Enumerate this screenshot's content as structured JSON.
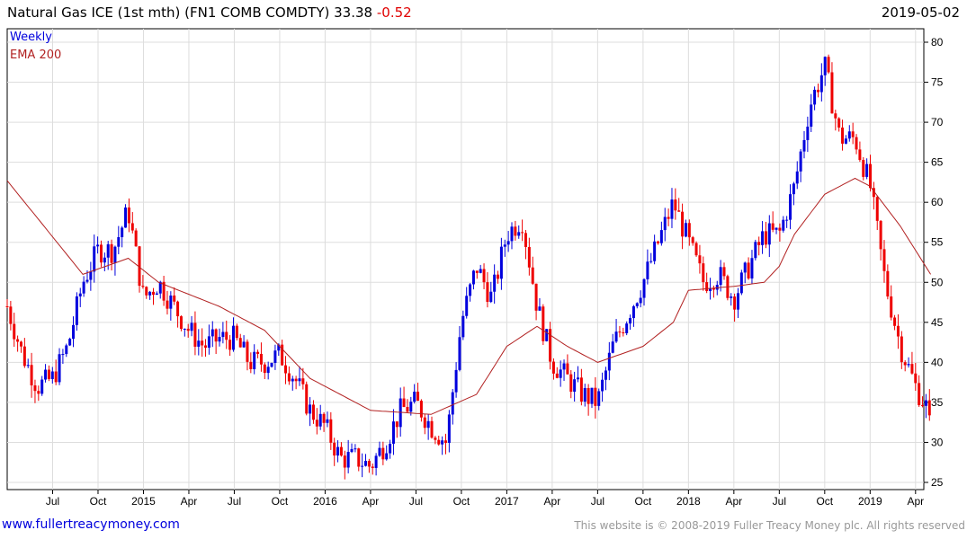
{
  "header": {
    "title": "Natural Gas ICE (1st mth) (FN1 COMB COMDTY) 33.38",
    "change": "-0.52",
    "date": "2019-05-02"
  },
  "footer": {
    "site": "www.fullertreacymoney.com",
    "copyright": "This website is © 2008-2019 Fuller Treacy Money plc. All rights reserved"
  },
  "chart_data": {
    "type": "candlestick",
    "title": "Natural Gas ICE (1st mth) (FN1 COMB COMDTY)",
    "legend": [
      "Weekly",
      "EMA 200"
    ],
    "legend_position": "top-left",
    "colors": {
      "up": "#0000dd",
      "down": "#ee0000",
      "ema": "#b22222",
      "grid": "#dddddd"
    },
    "ylim": [
      25,
      80
    ],
    "yticks": [
      25,
      30,
      35,
      40,
      45,
      50,
      55,
      60,
      65,
      70,
      75,
      80
    ],
    "xticks": [
      "Jul",
      "Oct",
      "2015",
      "Apr",
      "Jul",
      "Oct",
      "2016",
      "Apr",
      "Jul",
      "Oct",
      "2017",
      "Apr",
      "Jul",
      "Oct",
      "2018",
      "Apr",
      "Jul",
      "Oct",
      "2019",
      "Apr"
    ],
    "monthly_close": {
      "months": [
        "2014-04",
        "2014-05",
        "2014-06",
        "2014-07",
        "2014-08",
        "2014-09",
        "2014-10",
        "2014-11",
        "2014-12",
        "2015-01",
        "2015-02",
        "2015-03",
        "2015-04",
        "2015-05",
        "2015-06",
        "2015-07",
        "2015-08",
        "2015-09",
        "2015-10",
        "2015-11",
        "2015-12",
        "2016-01",
        "2016-02",
        "2016-03",
        "2016-04",
        "2016-05",
        "2016-06",
        "2016-07",
        "2016-08",
        "2016-09",
        "2016-10",
        "2016-11",
        "2016-12",
        "2017-01",
        "2017-02",
        "2017-03",
        "2017-04",
        "2017-05",
        "2017-06",
        "2017-07",
        "2017-08",
        "2017-09",
        "2017-10",
        "2017-11",
        "2017-12",
        "2018-01",
        "2018-02",
        "2018-03",
        "2018-04",
        "2018-05",
        "2018-06",
        "2018-07",
        "2018-08",
        "2018-09",
        "2018-10",
        "2018-11",
        "2018-12",
        "2019-01",
        "2019-02",
        "2019-03",
        "2019-04",
        "2019-05"
      ],
      "values": [
        47,
        41,
        37,
        38,
        42,
        50,
        54,
        54,
        59,
        48,
        50,
        47,
        44,
        42,
        43,
        43,
        40,
        40,
        41,
        38,
        34,
        32,
        28,
        28,
        27,
        30,
        34,
        35,
        32,
        30,
        45,
        52,
        48,
        56,
        58,
        47,
        40,
        38,
        36,
        35,
        42,
        46,
        50,
        55,
        60,
        55,
        50,
        51,
        48,
        52,
        56,
        56,
        62,
        72,
        77,
        68,
        68,
        62,
        50,
        42,
        37,
        33.38
      ]
    },
    "ema200": {
      "months": [
        "2014-04",
        "2014-09",
        "2014-12",
        "2015-02",
        "2015-06",
        "2015-09",
        "2015-12",
        "2016-04",
        "2016-08",
        "2016-11",
        "2017-01",
        "2017-03",
        "2017-05",
        "2017-07",
        "2017-10",
        "2017-12",
        "2018-01",
        "2018-04",
        "2018-06",
        "2018-07",
        "2018-08",
        "2018-10",
        "2018-12",
        "2019-01",
        "2019-03",
        "2019-05"
      ],
      "values": [
        62.7,
        51,
        53,
        50,
        47,
        44,
        38,
        34,
        33.5,
        36,
        42,
        44.5,
        42,
        40,
        42,
        45,
        49,
        49.5,
        50,
        52,
        56,
        61,
        63,
        62,
        57,
        51
      ]
    }
  }
}
